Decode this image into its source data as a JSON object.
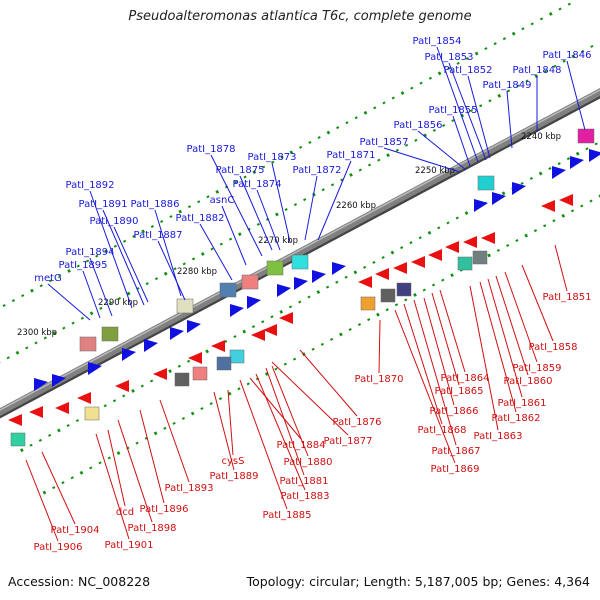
{
  "title": "Pseudoalteromonas atlantica T6c, complete genome",
  "accession": "Accession: NC_008228",
  "topology": "Topology: circular; Length: 5,187,005 bp; Genes: 4,364",
  "colors": {
    "forward_label": "#1a1adc",
    "reverse_label": "#d01010",
    "forward_gene": "#1010e0",
    "reverse_gene": "#e81010",
    "backbone": "#808080",
    "tick": "#109010"
  },
  "scale_labels": [
    "2240 kbp",
    "2250 kbp",
    "2260 kbp",
    "2270 kbp",
    "2280 kbp",
    "2290 kbp",
    "2300 kbp"
  ],
  "forward_labels": [
    "PatI_1846",
    "PatI_1848",
    "PatI_1849",
    "PatI_1852",
    "PatI_1853",
    "PatI_1854",
    "PatI_1855",
    "PatI_1856",
    "PatI_1857",
    "PatI_1871",
    "PatI_1872",
    "PatI_1873",
    "PatI_1874",
    "PatI_1875",
    "PatI_1878",
    "asnC",
    "PatI_1882",
    "PatI_1886",
    "PatI_1887",
    "PatI_1890",
    "PatI_1891",
    "PatI_1892",
    "PatI_1894",
    "PatI_1895",
    "metG"
  ],
  "reverse_labels": [
    "PatI_1851",
    "PatI_1858",
    "PatI_1859",
    "PatI_1860",
    "PatI_1861",
    "PatI_1862",
    "PatI_1863",
    "PatI_1864",
    "PatI_1865",
    "PatI_1866",
    "PatI_1867",
    "PatI_1868",
    "PatI_1869",
    "PatI_1870",
    "PatI_1876",
    "PatI_1877",
    "PatI_1880",
    "PatI_1881",
    "PatI_1883",
    "PatI_1884",
    "PatI_1885",
    "cysS",
    "PatI_1889",
    "PatI_1893",
    "PatI_1896",
    "PatI_1898",
    "dcd",
    "PatI_1901",
    "PatI_1904",
    "PatI_1906"
  ]
}
